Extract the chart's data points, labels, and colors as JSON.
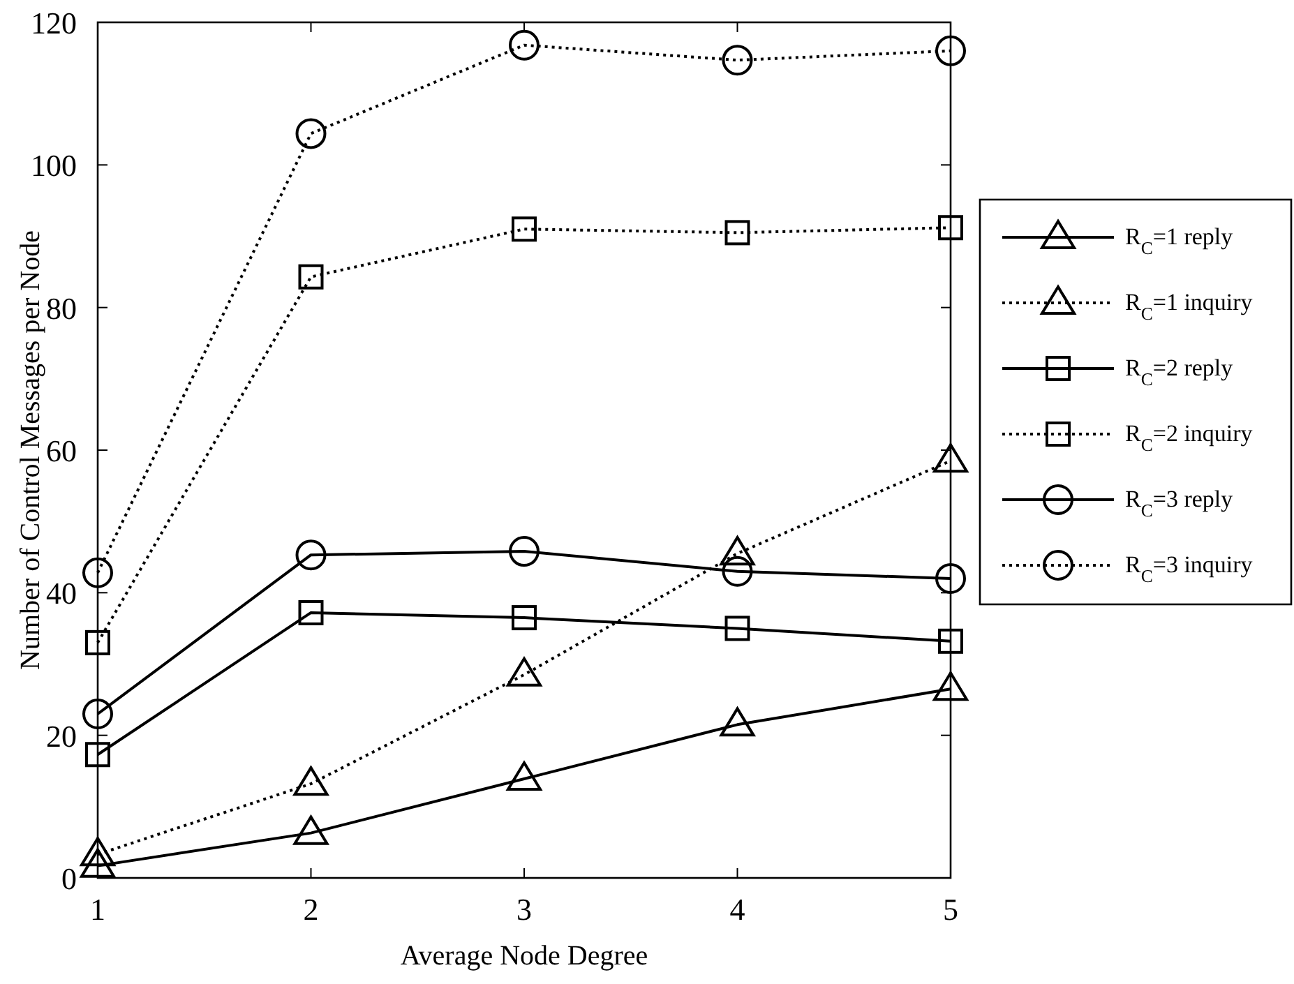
{
  "chart_data": {
    "type": "line",
    "xlabel": "Average Node Degree",
    "ylabel": "Number of Control Messages per Node",
    "x": [
      1,
      2,
      3,
      4,
      5
    ],
    "xlim": [
      1,
      5
    ],
    "xticks": [
      1,
      2,
      3,
      4,
      5
    ],
    "ylim": [
      0,
      120
    ],
    "yticks": [
      0,
      20,
      40,
      60,
      80,
      100,
      120
    ],
    "grid": false,
    "legend": "right",
    "series": [
      {
        "name": "R$_{C}$=1 reply",
        "color": "#000000",
        "marker": "triangle",
        "line_style": "solid",
        "values": [
          1.7,
          6.3,
          13.9,
          21.5,
          26.5
        ]
      },
      {
        "name": "R$_{C}$=1 inquiry",
        "color": "#000000",
        "marker": "triangle",
        "line_style": "dotted",
        "values": [
          3.3,
          13.2,
          28.5,
          45.5,
          58.5
        ]
      },
      {
        "name": "R$_{C}$=2 reply",
        "color": "#000000",
        "marker": "square",
        "line_style": "solid",
        "values": [
          17.3,
          37.2,
          36.5,
          35,
          33.2
        ]
      },
      {
        "name": "R$_{C}$=2 inquiry",
        "color": "#000000",
        "marker": "square",
        "line_style": "dotted",
        "values": [
          33,
          84.3,
          91,
          90.5,
          91.2
        ]
      },
      {
        "name": "R$_{C}$=3 reply",
        "color": "#000000",
        "marker": "circle",
        "line_style": "solid",
        "values": [
          23,
          45.3,
          45.8,
          43,
          42
        ]
      },
      {
        "name": "R$_{C}$=3 inquiry",
        "color": "#000000",
        "marker": "circle",
        "line_style": "dotted",
        "values": [
          42.8,
          104.4,
          116.8,
          114.7,
          116
        ]
      }
    ]
  }
}
